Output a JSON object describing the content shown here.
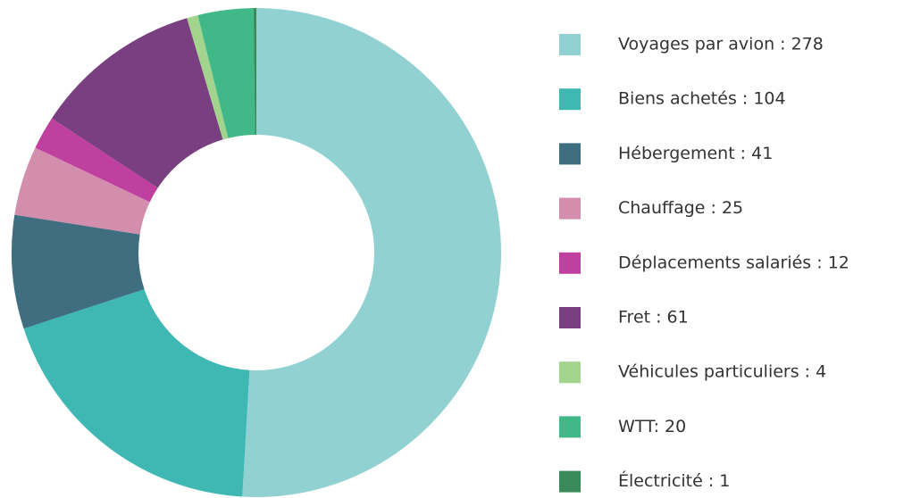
{
  "chart_data": {
    "type": "donut",
    "labels": [
      "Voyages par avion : 278",
      "Biens achetés : 104",
      "Hébergement : 41",
      "Chauffage : 25",
      "Déplacements salariés : 12",
      "Fret : 61",
      "Véhicules particuliers : 4",
      "WTT: 20",
      "Électricité : 1"
    ],
    "values": [
      278,
      104,
      41,
      25,
      12,
      61,
      4,
      20,
      1
    ],
    "colors": [
      "#91d1d1",
      "#3fb8b4",
      "#3f6e80",
      "#d48ead",
      "#c040a0",
      "#7a3f80",
      "#a3d48e",
      "#40b888",
      "#3a8a5a"
    ],
    "legend": "right"
  }
}
